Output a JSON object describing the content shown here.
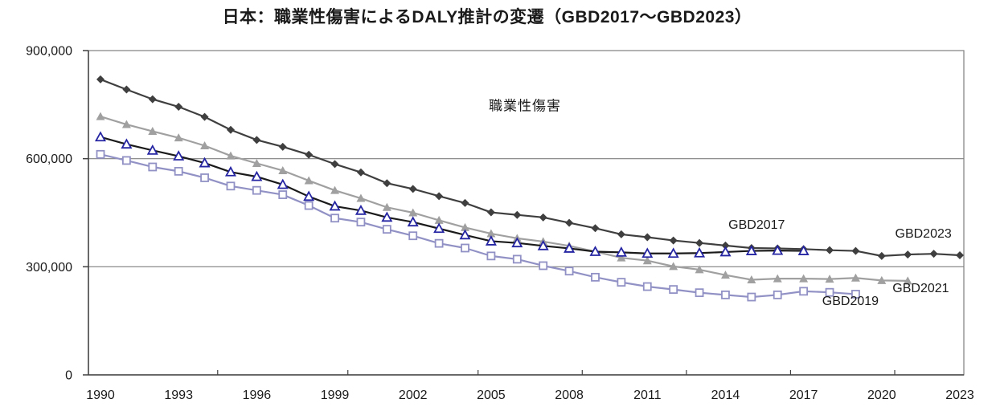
{
  "title": "日本：職業性傷害によるDALY推計の変遷（GBD2017～GBD2023）",
  "colors": {
    "background": "#ffffff",
    "grid": "#7f7f7f",
    "axis": "#404040",
    "text": "#1a1a1a",
    "gbd2017_line": "#1a1a1a",
    "gbd2017_marker": "#2525a3",
    "gbd2019": "#9191c5",
    "gbd2021": "#a0a0a0",
    "gbd2023": "#3f3f3f"
  },
  "chart_data": {
    "type": "line",
    "title": "日本：職業性傷害によるDALY推計の変遷（GBD2017～GBD2023）",
    "xlabel": "",
    "ylabel": "",
    "xlim": [
      1990,
      2023
    ],
    "ylim": [
      0,
      900000
    ],
    "grid": "horizontal",
    "legend_position": "inline-labels-on-chart",
    "ytick_values": [
      0,
      300000,
      600000,
      900000
    ],
    "ytick_labels": [
      "0",
      "300,000",
      "600,000",
      "900,000"
    ],
    "xtick_years": [
      1990,
      1993,
      1996,
      1999,
      2002,
      2005,
      2008,
      2011,
      2014,
      2017,
      2020,
      2023
    ],
    "xaxis_minor_ticks": [
      1994.5,
      1999.5,
      2004.5,
      2008.5,
      2012.5,
      2016.5,
      2020.5
    ],
    "annotation": {
      "text": "職業性傷害",
      "year": 2006.3,
      "value": 750000
    },
    "series_labels": [
      {
        "text": "GBD2017",
        "year": 2015.2,
        "value": 414000
      },
      {
        "text": "GBD2019",
        "year": 2018.8,
        "value": 203000
      },
      {
        "text": "GBD2021",
        "year": 2021.5,
        "value": 238000
      },
      {
        "text": "GBD2023",
        "year": 2021.6,
        "value": 390000
      }
    ],
    "series": [
      {
        "name": "GBD2019",
        "start_year": 1990,
        "end_year": 2019,
        "marker": "square-open",
        "line_color": "#9191c5",
        "marker_color": "#9191c5",
        "values": [
          612000,
          595000,
          577000,
          565000,
          547000,
          524000,
          512000,
          500000,
          470000,
          435000,
          424000,
          404000,
          386000,
          365000,
          352000,
          330000,
          321000,
          303000,
          288000,
          271000,
          257000,
          245000,
          237000,
          228000,
          222000,
          216000,
          222000,
          232000,
          229000,
          224000
        ]
      },
      {
        "name": "GBD2021",
        "start_year": 1990,
        "end_year": 2021,
        "marker": "triangle-filled",
        "line_color": "#a0a0a0",
        "marker_color": "#a0a0a0",
        "values": [
          717000,
          695000,
          676000,
          658000,
          636000,
          608000,
          587000,
          567000,
          539000,
          512000,
          490000,
          465000,
          450000,
          429000,
          409000,
          392000,
          379000,
          370000,
          358000,
          342000,
          325000,
          317000,
          301000,
          292000,
          277000,
          264000,
          267000,
          267000,
          266000,
          269000,
          262000,
          261000
        ]
      },
      {
        "name": "GBD2023",
        "start_year": 1990,
        "end_year": 2023,
        "marker": "diamond-filled",
        "line_color": "#3f3f3f",
        "marker_color": "#3f3f3f",
        "values": [
          820000,
          792000,
          765000,
          744000,
          716000,
          680000,
          652000,
          633000,
          611000,
          585000,
          562000,
          532000,
          516000,
          496000,
          477000,
          451000,
          444000,
          437000,
          422000,
          407000,
          390000,
          382000,
          373000,
          366000,
          359000,
          352000,
          351000,
          349000,
          346000,
          344000,
          330000,
          334000,
          336000,
          332000
        ]
      },
      {
        "name": "GBD2017",
        "start_year": 1990,
        "end_year": 2017,
        "marker": "triangle-open",
        "line_color": "#1a1a1a",
        "marker_color": "#2525a3",
        "values": [
          660000,
          640000,
          623000,
          607000,
          588000,
          563000,
          550000,
          528000,
          495000,
          468000,
          456000,
          437000,
          424000,
          406000,
          388000,
          371000,
          366000,
          358000,
          351000,
          342000,
          340000,
          337000,
          337000,
          338000,
          341000,
          344000,
          345000,
          344000
        ]
      }
    ]
  }
}
